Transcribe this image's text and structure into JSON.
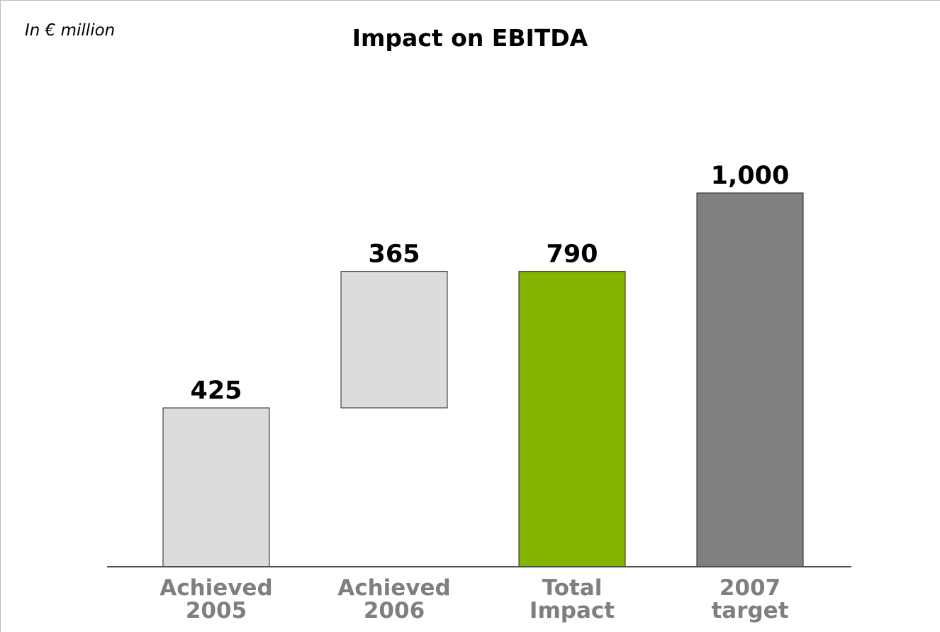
{
  "unit_label": "In € million",
  "chart_data": {
    "type": "bar",
    "title": "Impact on EBITDA",
    "xlabel": "",
    "ylabel": "",
    "ylim": [
      0,
      1250
    ],
    "grid": false,
    "legend": "none",
    "bars": [
      {
        "label_lines": [
          "Achieved",
          "2005"
        ],
        "value": 425,
        "base": 0,
        "color": "#dcdcdc"
      },
      {
        "label_lines": [
          "Achieved",
          "2006"
        ],
        "value": 365,
        "base": 425,
        "color": "#dcdcdc"
      },
      {
        "label_lines": [
          "Total",
          "Impact"
        ],
        "value": 790,
        "base": 0,
        "color": "#84b400"
      },
      {
        "label_lines": [
          "2007",
          "target"
        ],
        "value": 1000,
        "base": 0,
        "color": "#808080"
      }
    ],
    "axis_color": "#4d4d4d",
    "bar_outline_color": "#222222"
  }
}
